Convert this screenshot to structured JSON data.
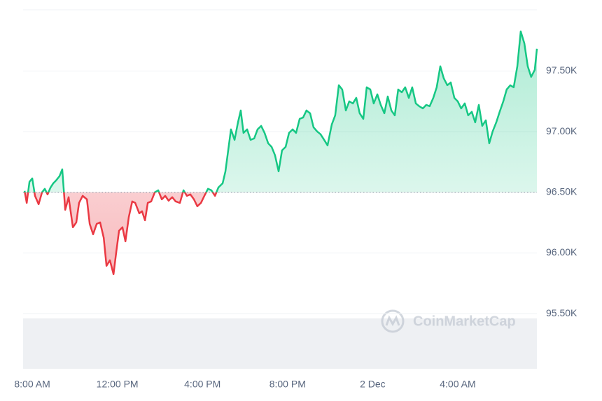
{
  "chart_data": {
    "type": "line",
    "watermark": "CoinMarketCap",
    "baseline": 96500,
    "up_color": "#16c784",
    "down_color": "#ea3943",
    "grid": true,
    "xlim": [
      -0.43,
      23.72
    ],
    "xticks": [
      {
        "value": 0,
        "label": "8:00 AM"
      },
      {
        "value": 4,
        "label": "12:00 PM"
      },
      {
        "value": 8,
        "label": "4:00 PM"
      },
      {
        "value": 12,
        "label": "8:00 PM"
      },
      {
        "value": 16,
        "label": "2 Dec"
      },
      {
        "value": 20,
        "label": "4:00 AM"
      }
    ],
    "ylim": [
      95045,
      98005
    ],
    "yticks": [
      {
        "value": 95500,
        "label": "95.50K"
      },
      {
        "value": 96000,
        "label": "96.00K"
      },
      {
        "value": 96500,
        "label": "96.50K"
      },
      {
        "value": 97000,
        "label": "97.00K"
      },
      {
        "value": 97500,
        "label": "97.50K"
      }
    ],
    "x": [
      -0.36,
      -0.26,
      -0.13,
      0,
      0.13,
      0.3,
      0.46,
      0.59,
      0.72,
      0.86,
      0.99,
      1.12,
      1.28,
      1.41,
      1.55,
      1.71,
      1.91,
      2.07,
      2.2,
      2.37,
      2.57,
      2.7,
      2.86,
      3.03,
      3.19,
      3.36,
      3.49,
      3.65,
      3.82,
      3.95,
      4.08,
      4.24,
      4.38,
      4.54,
      4.7,
      4.84,
      5.03,
      5.16,
      5.3,
      5.43,
      5.59,
      5.76,
      5.92,
      6.09,
      6.25,
      6.41,
      6.58,
      6.74,
      6.94,
      7.11,
      7.27,
      7.43,
      7.6,
      7.76,
      7.93,
      8.09,
      8.26,
      8.42,
      8.59,
      8.75,
      8.95,
      9.08,
      9.21,
      9.34,
      9.51,
      9.67,
      9.8,
      9.93,
      10.1,
      10.26,
      10.43,
      10.59,
      10.76,
      10.92,
      11.09,
      11.25,
      11.41,
      11.58,
      11.74,
      11.91,
      12.07,
      12.24,
      12.4,
      12.57,
      12.73,
      12.89,
      13.06,
      13.22,
      13.39,
      13.55,
      13.72,
      13.88,
      14.08,
      14.24,
      14.41,
      14.57,
      14.74,
      14.9,
      15.07,
      15.23,
      15.39,
      15.56,
      15.72,
      15.89,
      16.05,
      16.22,
      16.38,
      16.55,
      16.71,
      16.88,
      17.04,
      17.2,
      17.37,
      17.53,
      17.7,
      17.86,
      18.03,
      18.19,
      18.36,
      18.52,
      18.68,
      18.85,
      19.01,
      19.18,
      19.34,
      19.51,
      19.67,
      19.84,
      20.0,
      20.16,
      20.33,
      20.49,
      20.66,
      20.82,
      20.99,
      21.15,
      21.32,
      21.48,
      21.64,
      21.81,
      21.97,
      22.14,
      22.3,
      22.47,
      22.63,
      22.8,
      22.96,
      23.13,
      23.29,
      23.45,
      23.62,
      23.72
    ],
    "values": [
      96512,
      96413,
      96587,
      96615,
      96471,
      96402,
      96500,
      96529,
      96483,
      96540,
      96575,
      96598,
      96633,
      96690,
      96356,
      96460,
      96212,
      96252,
      96413,
      96471,
      96442,
      96240,
      96154,
      96240,
      96252,
      96125,
      95894,
      95940,
      95825,
      96010,
      96183,
      96212,
      96096,
      96298,
      96425,
      96413,
      96327,
      96344,
      96269,
      96413,
      96425,
      96500,
      96517,
      96442,
      96471,
      96431,
      96460,
      96425,
      96413,
      96517,
      96471,
      96483,
      96442,
      96385,
      96413,
      96471,
      96529,
      96517,
      96471,
      96540,
      96575,
      96673,
      96846,
      97019,
      96933,
      97077,
      97175,
      96990,
      97019,
      96933,
      96944,
      97019,
      97048,
      96990,
      96904,
      96875,
      96806,
      96673,
      96846,
      96875,
      96990,
      97019,
      96990,
      97106,
      97117,
      97175,
      97152,
      97037,
      97002,
      96979,
      96933,
      96887,
      97060,
      97135,
      97383,
      97348,
      97175,
      97250,
      97233,
      97279,
      97152,
      97106,
      97366,
      97348,
      97233,
      97308,
      97221,
      97152,
      97290,
      97175,
      97135,
      97348,
      97325,
      97366,
      97279,
      97366,
      97233,
      97210,
      97192,
      97221,
      97210,
      97279,
      97366,
      97539,
      97441,
      97383,
      97406,
      97279,
      97250,
      97192,
      97233,
      97135,
      97164,
      97077,
      97221,
      97048,
      97094,
      96904,
      97002,
      97077,
      97164,
      97250,
      97348,
      97383,
      97366,
      97539,
      97827,
      97729,
      97539,
      97452,
      97510,
      97683
    ]
  }
}
